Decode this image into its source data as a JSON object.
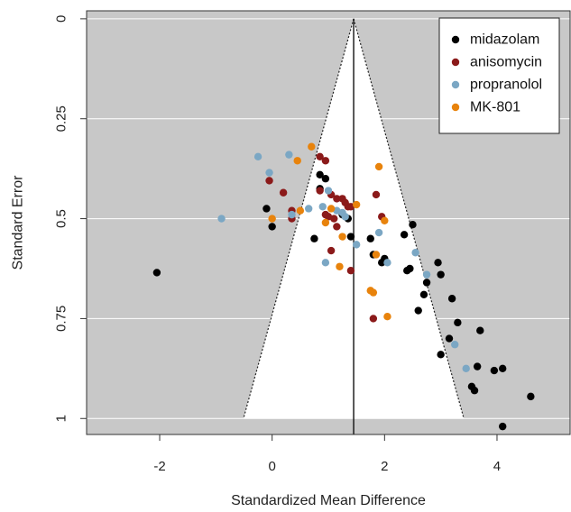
{
  "chart_data": {
    "type": "scatter",
    "subtype": "funnel",
    "xlabel": "Standardized Mean Difference",
    "ylabel": "Standard Error",
    "xlim": [
      -3.3,
      5.3
    ],
    "ylim": [
      1.04,
      -0.02
    ],
    "y_reversed": true,
    "x_ticks": [
      -2,
      0,
      2,
      4
    ],
    "x_tick_labels": [
      "-2",
      "0",
      "2",
      "4"
    ],
    "y_ticks": [
      0,
      0.25,
      0.5,
      0.75,
      1
    ],
    "y_tick_labels": [
      "0",
      "0.25",
      "0.5",
      "0.75",
      "1"
    ],
    "grid": "horizontal, white, on grey background",
    "legend_position": "top-right",
    "funnel": {
      "center": 1.45,
      "se_max": 1.0,
      "z": 1.96,
      "fill": "#ffffff",
      "background": "#c8c8c8"
    },
    "series": [
      {
        "name": "midazolam",
        "color": "#000000",
        "points": [
          [
            -2.05,
            0.635
          ],
          [
            -0.1,
            0.475
          ],
          [
            0.0,
            0.52
          ],
          [
            0.75,
            0.55
          ],
          [
            0.85,
            0.39
          ],
          [
            0.95,
            0.4
          ],
          [
            0.85,
            0.425
          ],
          [
            1.25,
            0.49
          ],
          [
            1.35,
            0.5
          ],
          [
            1.4,
            0.545
          ],
          [
            1.75,
            0.55
          ],
          [
            1.8,
            0.59
          ],
          [
            1.95,
            0.61
          ],
          [
            2.0,
            0.6
          ],
          [
            2.35,
            0.54
          ],
          [
            2.4,
            0.63
          ],
          [
            2.45,
            0.625
          ],
          [
            2.5,
            0.515
          ],
          [
            2.6,
            0.73
          ],
          [
            2.7,
            0.69
          ],
          [
            2.75,
            0.66
          ],
          [
            2.95,
            0.61
          ],
          [
            3.0,
            0.64
          ],
          [
            3.0,
            0.84
          ],
          [
            3.15,
            0.8
          ],
          [
            3.2,
            0.7
          ],
          [
            3.3,
            0.76
          ],
          [
            3.55,
            0.92
          ],
          [
            3.6,
            0.93
          ],
          [
            3.65,
            0.87
          ],
          [
            3.7,
            0.78
          ],
          [
            3.95,
            0.88
          ],
          [
            4.1,
            0.875
          ],
          [
            4.6,
            0.945
          ],
          [
            4.1,
            1.02
          ]
        ]
      },
      {
        "name": "anisomycin",
        "color": "#8b1a1a",
        "points": [
          [
            -0.05,
            0.405
          ],
          [
            0.2,
            0.435
          ],
          [
            0.35,
            0.48
          ],
          [
            0.35,
            0.5
          ],
          [
            0.85,
            0.345
          ],
          [
            0.95,
            0.355
          ],
          [
            0.85,
            0.43
          ],
          [
            0.95,
            0.49
          ],
          [
            1.0,
            0.495
          ],
          [
            1.05,
            0.44
          ],
          [
            1.1,
            0.5
          ],
          [
            1.15,
            0.52
          ],
          [
            1.05,
            0.58
          ],
          [
            1.15,
            0.45
          ],
          [
            1.25,
            0.45
          ],
          [
            1.3,
            0.46
          ],
          [
            1.35,
            0.47
          ],
          [
            1.4,
            0.47
          ],
          [
            1.4,
            0.63
          ],
          [
            1.85,
            0.44
          ],
          [
            1.95,
            0.495
          ],
          [
            1.8,
            0.75
          ]
        ]
      },
      {
        "name": "propranolol",
        "color": "#7ba7c4",
        "points": [
          [
            -0.9,
            0.5
          ],
          [
            -0.25,
            0.345
          ],
          [
            -0.05,
            0.385
          ],
          [
            0.3,
            0.34
          ],
          [
            0.35,
            0.49
          ],
          [
            0.65,
            0.475
          ],
          [
            0.9,
            0.47
          ],
          [
            1.0,
            0.43
          ],
          [
            0.95,
            0.61
          ],
          [
            1.15,
            0.48
          ],
          [
            1.25,
            0.485
          ],
          [
            1.3,
            0.495
          ],
          [
            1.5,
            0.565
          ],
          [
            1.9,
            0.535
          ],
          [
            2.05,
            0.61
          ],
          [
            2.55,
            0.585
          ],
          [
            2.75,
            0.64
          ],
          [
            3.25,
            0.815
          ],
          [
            3.45,
            0.875
          ]
        ]
      },
      {
        "name": "MK-801",
        "color": "#e8830c",
        "points": [
          [
            0.0,
            0.5
          ],
          [
            0.45,
            0.355
          ],
          [
            0.5,
            0.48
          ],
          [
            0.7,
            0.32
          ],
          [
            0.95,
            0.51
          ],
          [
            1.05,
            0.475
          ],
          [
            1.2,
            0.62
          ],
          [
            1.25,
            0.545
          ],
          [
            1.5,
            0.465
          ],
          [
            1.75,
            0.68
          ],
          [
            1.8,
            0.685
          ],
          [
            1.85,
            0.59
          ],
          [
            1.9,
            0.37
          ],
          [
            2.0,
            0.505
          ],
          [
            2.05,
            0.745
          ]
        ]
      }
    ]
  }
}
